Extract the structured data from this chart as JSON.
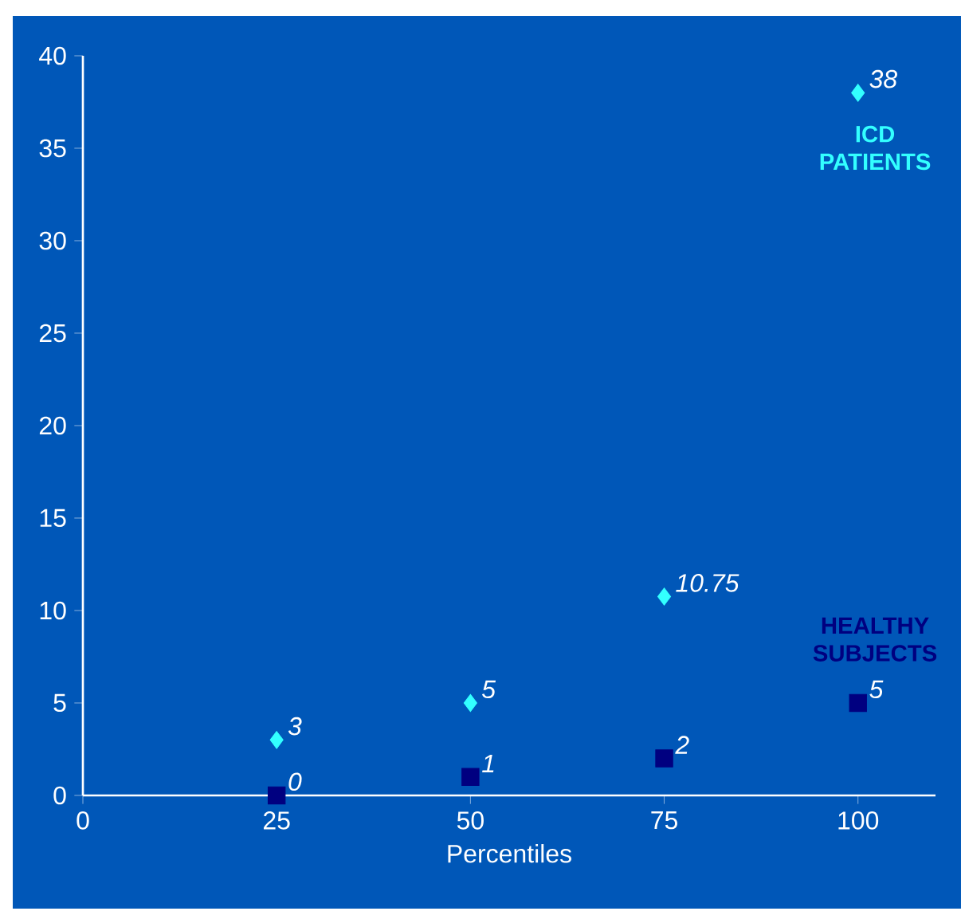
{
  "chart_data": {
    "type": "scatter",
    "xlabel": "Percentiles",
    "xlim": [
      0,
      110
    ],
    "xticks": [
      0,
      25,
      50,
      75,
      100
    ],
    "ylim": [
      0,
      40
    ],
    "yticks": [
      0,
      5,
      10,
      15,
      20,
      25,
      30,
      35,
      40
    ],
    "data_labels": true,
    "series": [
      {
        "name": "ICD PATIENTS",
        "color": "#33ffff",
        "marker": "diamond",
        "x": [
          25,
          50,
          75,
          100
        ],
        "values": [
          3,
          5,
          10.75,
          38
        ]
      },
      {
        "name": "HEALTHY SUBJECTS",
        "color": "#000080",
        "marker": "square",
        "x": [
          25,
          50,
          75,
          100
        ],
        "values": [
          0,
          1,
          2,
          5
        ]
      }
    ]
  }
}
